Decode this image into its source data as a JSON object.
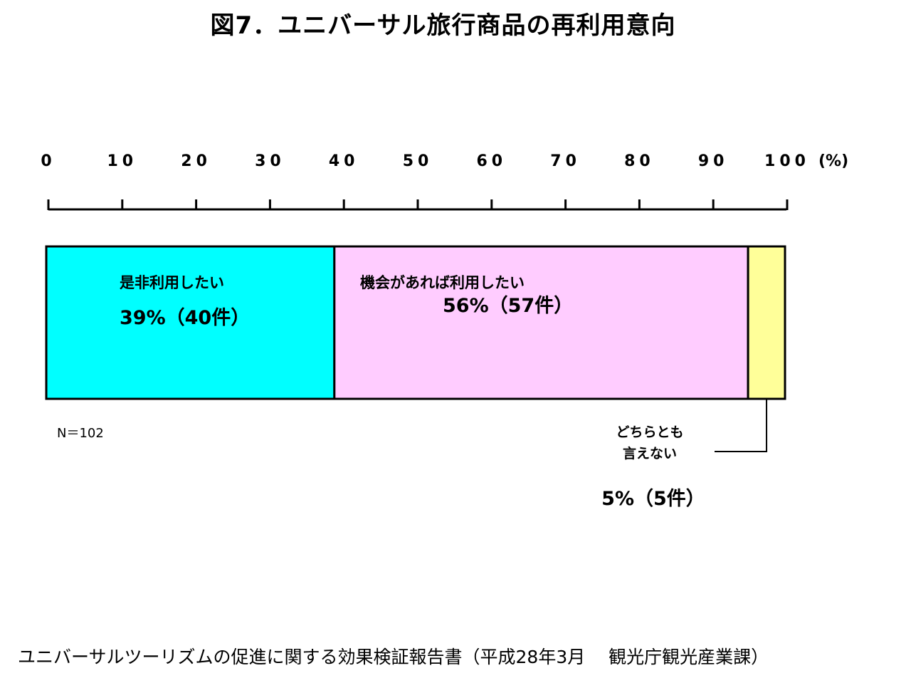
{
  "chart_data": {
    "type": "bar",
    "orientation": "horizontal-stacked",
    "title": "図7．ユニバーサル旅行商品の再利用意向",
    "xlim": [
      0,
      100
    ],
    "ticks": [
      "0",
      "10",
      "20",
      "30",
      "40",
      "50",
      "60",
      "70",
      "80",
      "90",
      "100"
    ],
    "unit": "(%)",
    "segments": [
      {
        "label": "是非利用したい",
        "value": 39,
        "value_label": "39%（40件）",
        "color": "#00ffff"
      },
      {
        "label": "機会があれば利用したい",
        "value": 56,
        "value_label": "56%（57件）",
        "color": "#ffccff"
      },
      {
        "label_line1": "どちらとも",
        "label_line2": "言えない",
        "value": 5,
        "value_label": "5%（5件）",
        "color": "#ffff99"
      }
    ],
    "n_note": "N＝102"
  },
  "source": "ユニバーサルツーリズムの促進に関する効果検証報告書（平成28年3月　 観光庁観光産業課）"
}
